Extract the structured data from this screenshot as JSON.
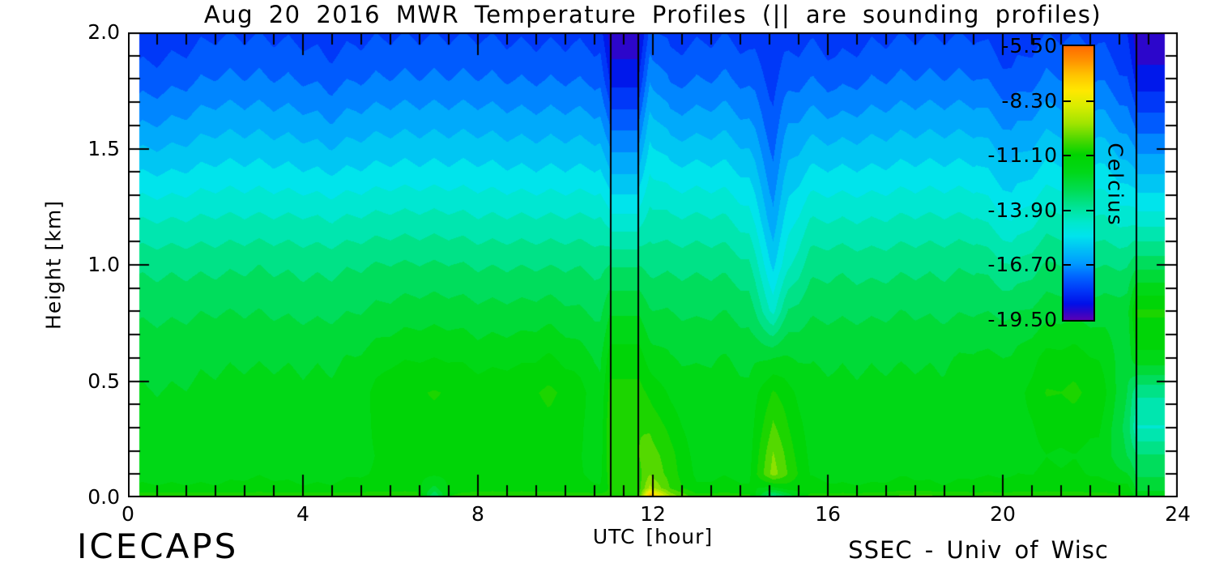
{
  "footer": {
    "left": "ICECAPS",
    "right": "SSEC - Univ of Wisc"
  },
  "chart_data": {
    "type": "heatmap",
    "title": "Aug 20 2016 MWR Temperature Profiles (|| are sounding profiles)",
    "xlabel": "UTC [hour]",
    "ylabel": "Height [km]",
    "xlim": [
      0,
      24
    ],
    "ylim": [
      0,
      2
    ],
    "x_major_ticks": [
      0,
      4,
      8,
      12,
      16,
      20,
      24
    ],
    "x_tick_labels": [
      "0",
      "4",
      "8",
      "12",
      "16",
      "20",
      "24"
    ],
    "x_minor_per_major": 6,
    "y_major_ticks": [
      0,
      0.5,
      1,
      1.5,
      2
    ],
    "y_tick_labels": [
      "0.0",
      "0.5",
      "1.0",
      "1.5",
      "2.0"
    ],
    "y_minor_step": 0.1,
    "colorbar": {
      "title": "Celcius",
      "tick_labels": [
        "-5.50",
        "-8.30",
        "-11.10",
        "-13.90",
        "-16.70",
        "-19.50"
      ],
      "tick_values": [
        -5.5,
        -8.3,
        -11.1,
        -13.9,
        -16.7,
        -19.5
      ],
      "t_top": -5.5,
      "t_bottom": -19.64
    },
    "colormap": [
      [
        -5.5,
        "#ff6a00"
      ],
      [
        -6.2,
        "#ff9000"
      ],
      [
        -7.0,
        "#ffc400"
      ],
      [
        -7.8,
        "#ffe800"
      ],
      [
        -8.6,
        "#d8ec00"
      ],
      [
        -9.5,
        "#a0e400"
      ],
      [
        -10.3,
        "#50d800"
      ],
      [
        -11.1,
        "#00d400"
      ],
      [
        -12.0,
        "#00d818"
      ],
      [
        -12.9,
        "#00dc50"
      ],
      [
        -13.9,
        "#00e49c"
      ],
      [
        -14.6,
        "#00e8cc"
      ],
      [
        -15.3,
        "#00e4ec"
      ],
      [
        -15.9,
        "#00c4f4"
      ],
      [
        -16.7,
        "#009cff"
      ],
      [
        -17.4,
        "#0064ff"
      ],
      [
        -18.1,
        "#0038f8"
      ],
      [
        -18.8,
        "#0010e8"
      ],
      [
        -19.2,
        "#2a06cc"
      ],
      [
        -19.64,
        "#5a00b4"
      ]
    ],
    "contour_step_c": 0.56,
    "sample_interval_h": 0.6667,
    "contour_wiggle_c": 0.12,
    "data_time_range": [
      0.26,
      23.7
    ],
    "sounding_spans": [
      [
        11.03,
        11.66
      ],
      [
        23.06,
        23.7
      ]
    ],
    "sounding_lines": [
      11.03,
      11.66,
      23.06
    ],
    "units": "degrees Celsius",
    "temps_layout": "temps[i][j] = temperature at hours[i] and heights[j] (heights listed bottom to top, km)",
    "hours": [
      0.26,
      1.0,
      2.0,
      3.0,
      4.0,
      4.6,
      5.2,
      6.0,
      6.6,
      7.0,
      7.4,
      8.0,
      9.0,
      9.6,
      10.2,
      10.8,
      11.03,
      11.35,
      11.66,
      11.93,
      12.4,
      13.0,
      13.6,
      14.2,
      14.75,
      15.1,
      15.6,
      16.2,
      17.0,
      17.8,
      18.6,
      19.4,
      20.2,
      21.0,
      21.6,
      22.2,
      22.85,
      23.06,
      23.4,
      23.7
    ],
    "heights": [
      0.0,
      0.04,
      0.1,
      0.18,
      0.3,
      0.45,
      0.6,
      0.8,
      1.0,
      1.2,
      1.4,
      1.6,
      1.8,
      2.0
    ],
    "temps": [
      [
        -10.6,
        -11.6,
        -11.8,
        -11.9,
        -12.0,
        -12.2,
        -12.4,
        -12.9,
        -13.5,
        -14.5,
        -15.6,
        -16.7,
        -17.6,
        -18.3
      ],
      [
        -10.6,
        -11.6,
        -11.8,
        -11.9,
        -12.0,
        -12.2,
        -12.4,
        -12.9,
        -13.5,
        -14.5,
        -15.6,
        -16.6,
        -17.5,
        -18.2
      ],
      [
        -10.6,
        -11.6,
        -11.8,
        -11.9,
        -12.0,
        -12.1,
        -12.3,
        -12.8,
        -13.5,
        -14.4,
        -15.4,
        -16.3,
        -17.2,
        -17.9
      ],
      [
        -10.6,
        -11.5,
        -11.7,
        -11.8,
        -11.9,
        -12.0,
        -12.3,
        -12.8,
        -13.4,
        -14.4,
        -15.4,
        -16.3,
        -17.2,
        -17.9
      ],
      [
        -10.6,
        -11.6,
        -11.8,
        -11.9,
        -12.0,
        -12.1,
        -12.3,
        -12.9,
        -13.5,
        -14.4,
        -15.5,
        -16.4,
        -17.3,
        -18.0
      ],
      [
        -10.6,
        -11.6,
        -11.8,
        -11.9,
        -12.0,
        -12.1,
        -12.3,
        -12.9,
        -13.5,
        -14.5,
        -15.6,
        -16.6,
        -17.5,
        -18.2
      ],
      [
        -10.6,
        -11.5,
        -11.7,
        -11.8,
        -11.9,
        -12.0,
        -12.2,
        -12.8,
        -13.4,
        -14.4,
        -15.5,
        -16.4,
        -17.3,
        -18.0
      ],
      [
        -10.6,
        -11.4,
        -11.6,
        -11.6,
        -11.4,
        -11.2,
        -11.8,
        -12.6,
        -13.3,
        -14.3,
        -15.4,
        -16.3,
        -17.2,
        -17.9
      ],
      [
        -10.6,
        -11.4,
        -11.5,
        -11.5,
        -11.3,
        -11.1,
        -11.7,
        -12.5,
        -13.3,
        -14.3,
        -15.4,
        -16.3,
        -17.2,
        -17.9
      ],
      [
        -13.6,
        -12.4,
        -11.6,
        -11.5,
        -11.3,
        -11.1,
        -11.7,
        -12.5,
        -13.3,
        -14.3,
        -15.4,
        -16.3,
        -17.2,
        -17.9
      ],
      [
        -11.0,
        -11.4,
        -11.5,
        -11.5,
        -11.3,
        -11.1,
        -11.7,
        -12.5,
        -13.3,
        -14.3,
        -15.4,
        -16.3,
        -17.2,
        -17.9
      ],
      [
        -10.6,
        -11.4,
        -11.6,
        -11.6,
        -11.5,
        -11.3,
        -11.9,
        -12.6,
        -13.4,
        -14.4,
        -15.4,
        -16.3,
        -17.2,
        -17.9
      ],
      [
        -10.6,
        -11.4,
        -11.6,
        -11.6,
        -11.4,
        -11.2,
        -11.8,
        -12.6,
        -13.4,
        -14.4,
        -15.5,
        -16.4,
        -17.3,
        -18.0
      ],
      [
        -10.6,
        -11.4,
        -11.5,
        -11.5,
        -11.3,
        -11.0,
        -11.6,
        -12.5,
        -13.4,
        -14.4,
        -15.5,
        -16.4,
        -17.3,
        -18.0
      ],
      [
        -10.6,
        -11.5,
        -11.6,
        -11.6,
        -11.5,
        -11.3,
        -11.9,
        -12.7,
        -13.4,
        -14.4,
        -15.5,
        -16.4,
        -17.3,
        -18.0
      ],
      [
        -10.7,
        -11.6,
        -11.8,
        -11.9,
        -12.0,
        -12.1,
        -12.3,
        -12.9,
        -13.5,
        -14.4,
        -15.5,
        -16.5,
        -17.4,
        -18.1
      ],
      [
        -11.0,
        -11.0,
        -10.8,
        -10.6,
        -10.6,
        -10.9,
        -11.4,
        -12.3,
        -13.4,
        -14.9,
        -16.2,
        -17.4,
        -18.6,
        -19.4
      ],
      [
        -11.0,
        -11.0,
        -10.8,
        -10.6,
        -10.6,
        -10.9,
        -11.4,
        -12.3,
        -13.4,
        -14.9,
        -16.2,
        -17.4,
        -18.6,
        -19.4
      ],
      [
        -11.0,
        -11.0,
        -10.8,
        -10.6,
        -10.6,
        -10.9,
        -11.4,
        -12.3,
        -13.4,
        -14.9,
        -16.2,
        -17.4,
        -18.6,
        -19.4
      ],
      [
        -6.0,
        -9.2,
        -10.0,
        -10.2,
        -10.6,
        -11.2,
        -11.9,
        -12.7,
        -13.5,
        -14.2,
        -15.0,
        -15.8,
        -16.7,
        -17.6
      ],
      [
        -9.4,
        -10.6,
        -10.8,
        -10.9,
        -11.3,
        -11.8,
        -12.2,
        -12.8,
        -13.5,
        -14.4,
        -15.4,
        -16.4,
        -17.4,
        -18.1
      ],
      [
        -10.8,
        -11.6,
        -11.8,
        -11.9,
        -12.0,
        -12.1,
        -12.3,
        -12.9,
        -13.5,
        -14.4,
        -15.4,
        -16.4,
        -17.3,
        -18.0
      ],
      [
        -10.7,
        -11.5,
        -11.7,
        -11.8,
        -11.7,
        -11.9,
        -12.2,
        -12.8,
        -13.5,
        -14.4,
        -15.4,
        -16.3,
        -17.2,
        -17.9
      ],
      [
        -10.8,
        -11.6,
        -11.8,
        -11.9,
        -12.0,
        -12.1,
        -12.4,
        -13.0,
        -13.8,
        -14.8,
        -15.7,
        -16.6,
        -17.4,
        -18.1
      ],
      [
        -14.0,
        -11.8,
        -9.7,
        -9.9,
        -10.4,
        -11.0,
        -12.2,
        -14.6,
        -15.7,
        -16.5,
        -17.1,
        -17.6,
        -18.0,
        -18.3
      ],
      [
        -12.8,
        -11.4,
        -10.6,
        -10.8,
        -11.1,
        -11.5,
        -12.2,
        -13.3,
        -14.6,
        -15.3,
        -16.0,
        -16.7,
        -17.5,
        -18.1
      ],
      [
        -10.8,
        -11.5,
        -11.7,
        -11.8,
        -11.9,
        -12.0,
        -12.3,
        -12.9,
        -13.6,
        -14.5,
        -15.5,
        -16.4,
        -17.3,
        -18.0
      ],
      [
        -10.7,
        -11.6,
        -11.8,
        -11.9,
        -12.0,
        -12.1,
        -12.3,
        -12.9,
        -13.5,
        -14.5,
        -15.5,
        -16.5,
        -17.5,
        -18.2
      ],
      [
        -10.6,
        -11.6,
        -11.8,
        -11.9,
        -12.0,
        -12.1,
        -12.3,
        -12.9,
        -13.6,
        -14.5,
        -15.5,
        -16.4,
        -17.3,
        -18.0
      ],
      [
        -10.2,
        -11.5,
        -11.7,
        -11.8,
        -11.9,
        -12.0,
        -12.3,
        -12.8,
        -13.5,
        -14.4,
        -15.4,
        -16.3,
        -17.2,
        -17.9
      ],
      [
        -10.3,
        -11.6,
        -11.8,
        -11.9,
        -12.0,
        -12.1,
        -12.3,
        -12.9,
        -13.5,
        -14.4,
        -15.4,
        -16.3,
        -17.2,
        -17.9
      ],
      [
        -10.6,
        -11.5,
        -11.7,
        -11.8,
        -11.8,
        -11.7,
        -12.1,
        -12.8,
        -13.4,
        -14.4,
        -15.4,
        -16.3,
        -17.2,
        -17.9
      ],
      [
        -10.6,
        -11.5,
        -11.7,
        -11.8,
        -11.9,
        -12.0,
        -12.2,
        -12.9,
        -13.9,
        -15.1,
        -16.0,
        -16.8,
        -17.7,
        -18.3
      ],
      [
        -10.6,
        -11.4,
        -11.6,
        -11.7,
        -11.5,
        -11.1,
        -11.5,
        -12.5,
        -13.3,
        -14.3,
        -15.4,
        -16.3,
        -17.2,
        -17.9
      ],
      [
        -10.6,
        -11.4,
        -11.6,
        -11.7,
        -11.4,
        -11.0,
        -11.4,
        -12.4,
        -13.3,
        -14.3,
        -15.4,
        -16.3,
        -17.2,
        -17.9
      ],
      [
        -10.7,
        -11.5,
        -11.7,
        -11.8,
        -11.6,
        -11.3,
        -11.7,
        -12.5,
        -13.4,
        -14.4,
        -15.4,
        -16.4,
        -17.3,
        -18.0
      ],
      [
        -11.0,
        -11.4,
        -12.2,
        -12.8,
        -13.0,
        -12.8,
        -12.6,
        -12.4,
        -13.4,
        -14.7,
        -15.9,
        -16.9,
        -17.8,
        -18.4
      ],
      [
        -11.8,
        -12.4,
        -12.9,
        -13.3,
        -14.5,
        -13.8,
        -11.8,
        -11.0,
        -13.0,
        -14.8,
        -16.2,
        -17.5,
        -18.7,
        -19.5
      ],
      [
        -11.8,
        -12.4,
        -12.9,
        -13.3,
        -14.5,
        -13.8,
        -11.8,
        -11.0,
        -13.0,
        -14.8,
        -16.2,
        -17.5,
        -18.7,
        -19.5
      ],
      [
        -11.8,
        -12.4,
        -12.9,
        -13.3,
        -14.5,
        -13.8,
        -11.8,
        -11.0,
        -13.0,
        -14.8,
        -16.2,
        -17.5,
        -18.7,
        -19.5
      ]
    ]
  }
}
